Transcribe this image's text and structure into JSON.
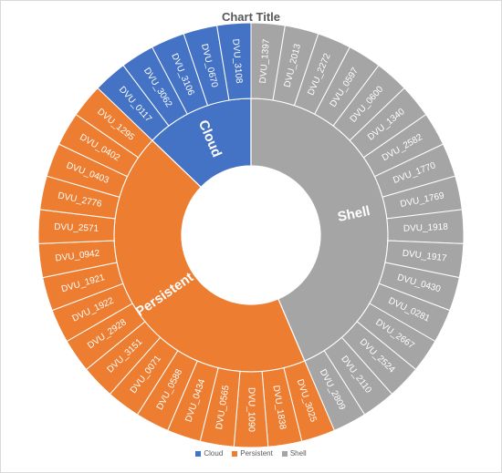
{
  "chart_data": {
    "type": "sunburst",
    "title": "Chart Title",
    "legend_position": "bottom",
    "colors": {
      "Cloud": "#4472C4",
      "Persistent": "#ED7D31",
      "Shell": "#A5A5A5"
    },
    "groups": [
      {
        "name": "Cloud",
        "items": [
          "DVU_0117",
          "DVU_3062",
          "DVU_3106",
          "DVU_0670",
          "DVU_3108"
        ]
      },
      {
        "name": "Shell",
        "items": [
          "DVU_1397",
          "DVU_2013",
          "DVU_2272",
          "DVU_0597",
          "DVU_0600",
          "DVU_1340",
          "DVU_2582",
          "DVU_1770",
          "DVU_1769",
          "DVU_1918",
          "DVU_1917",
          "DVU_0430",
          "DVU_0281",
          "DVU_2667",
          "DVU_2524",
          "DVU_2110",
          "DVU_2809"
        ]
      },
      {
        "name": "Persistent",
        "items": [
          "DVU_3025",
          "DVU_1838",
          "DVU_1090",
          "DVU_0565",
          "DVU_0434",
          "DVU_0588",
          "DVU_0071",
          "DVU_3151",
          "DVU_2928",
          "DVU_1922",
          "DVU_1921",
          "DVU_0942",
          "DVU_2571",
          "DVU_2776",
          "DVU_0403",
          "DVU_0402",
          "DVU_1295"
        ]
      }
    ]
  }
}
